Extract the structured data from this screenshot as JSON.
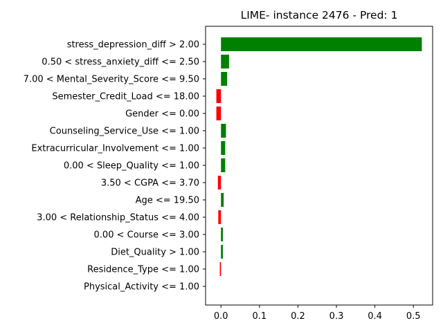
{
  "chart_data": {
    "type": "bar",
    "orientation": "horizontal",
    "title": "LIME- instance 2476 - Pred: 1",
    "xlabel": "",
    "ylabel": "",
    "xlim": [
      -0.04,
      0.55
    ],
    "xticks": [
      0.0,
      0.1,
      0.2,
      0.3,
      0.4,
      0.5
    ],
    "xtick_labels": [
      "0.0",
      "0.1",
      "0.2",
      "0.3",
      "0.4",
      "0.5"
    ],
    "grid": false,
    "legend": "none",
    "positive_color": "#008000",
    "negative_color": "#ff0000",
    "categories": [
      "stress_depression_diff > 2.00",
      "0.50 < stress_anxiety_diff <= 2.50",
      "7.00 < Mental_Severity_Score <= 9.50",
      "Semester_Credit_Load <= 18.00",
      "Gender <= 0.00",
      "Counseling_Service_Use <= 1.00",
      "Extracurricular_Involvement <= 1.00",
      "0.00 < Sleep_Quality <= 1.00",
      "3.50 < CGPA <= 3.70",
      "Age <= 19.50",
      "3.00 < Relationship_Status <= 4.00",
      "0.00 < Course <= 3.00",
      "Diet_Quality > 1.00",
      "Residence_Type <= 1.00",
      "Physical_Activity <= 1.00"
    ],
    "values": [
      0.522,
      0.021,
      0.016,
      -0.012,
      -0.012,
      0.013,
      0.011,
      0.011,
      -0.008,
      0.007,
      -0.007,
      0.005,
      0.005,
      -0.003,
      0.0
    ]
  }
}
